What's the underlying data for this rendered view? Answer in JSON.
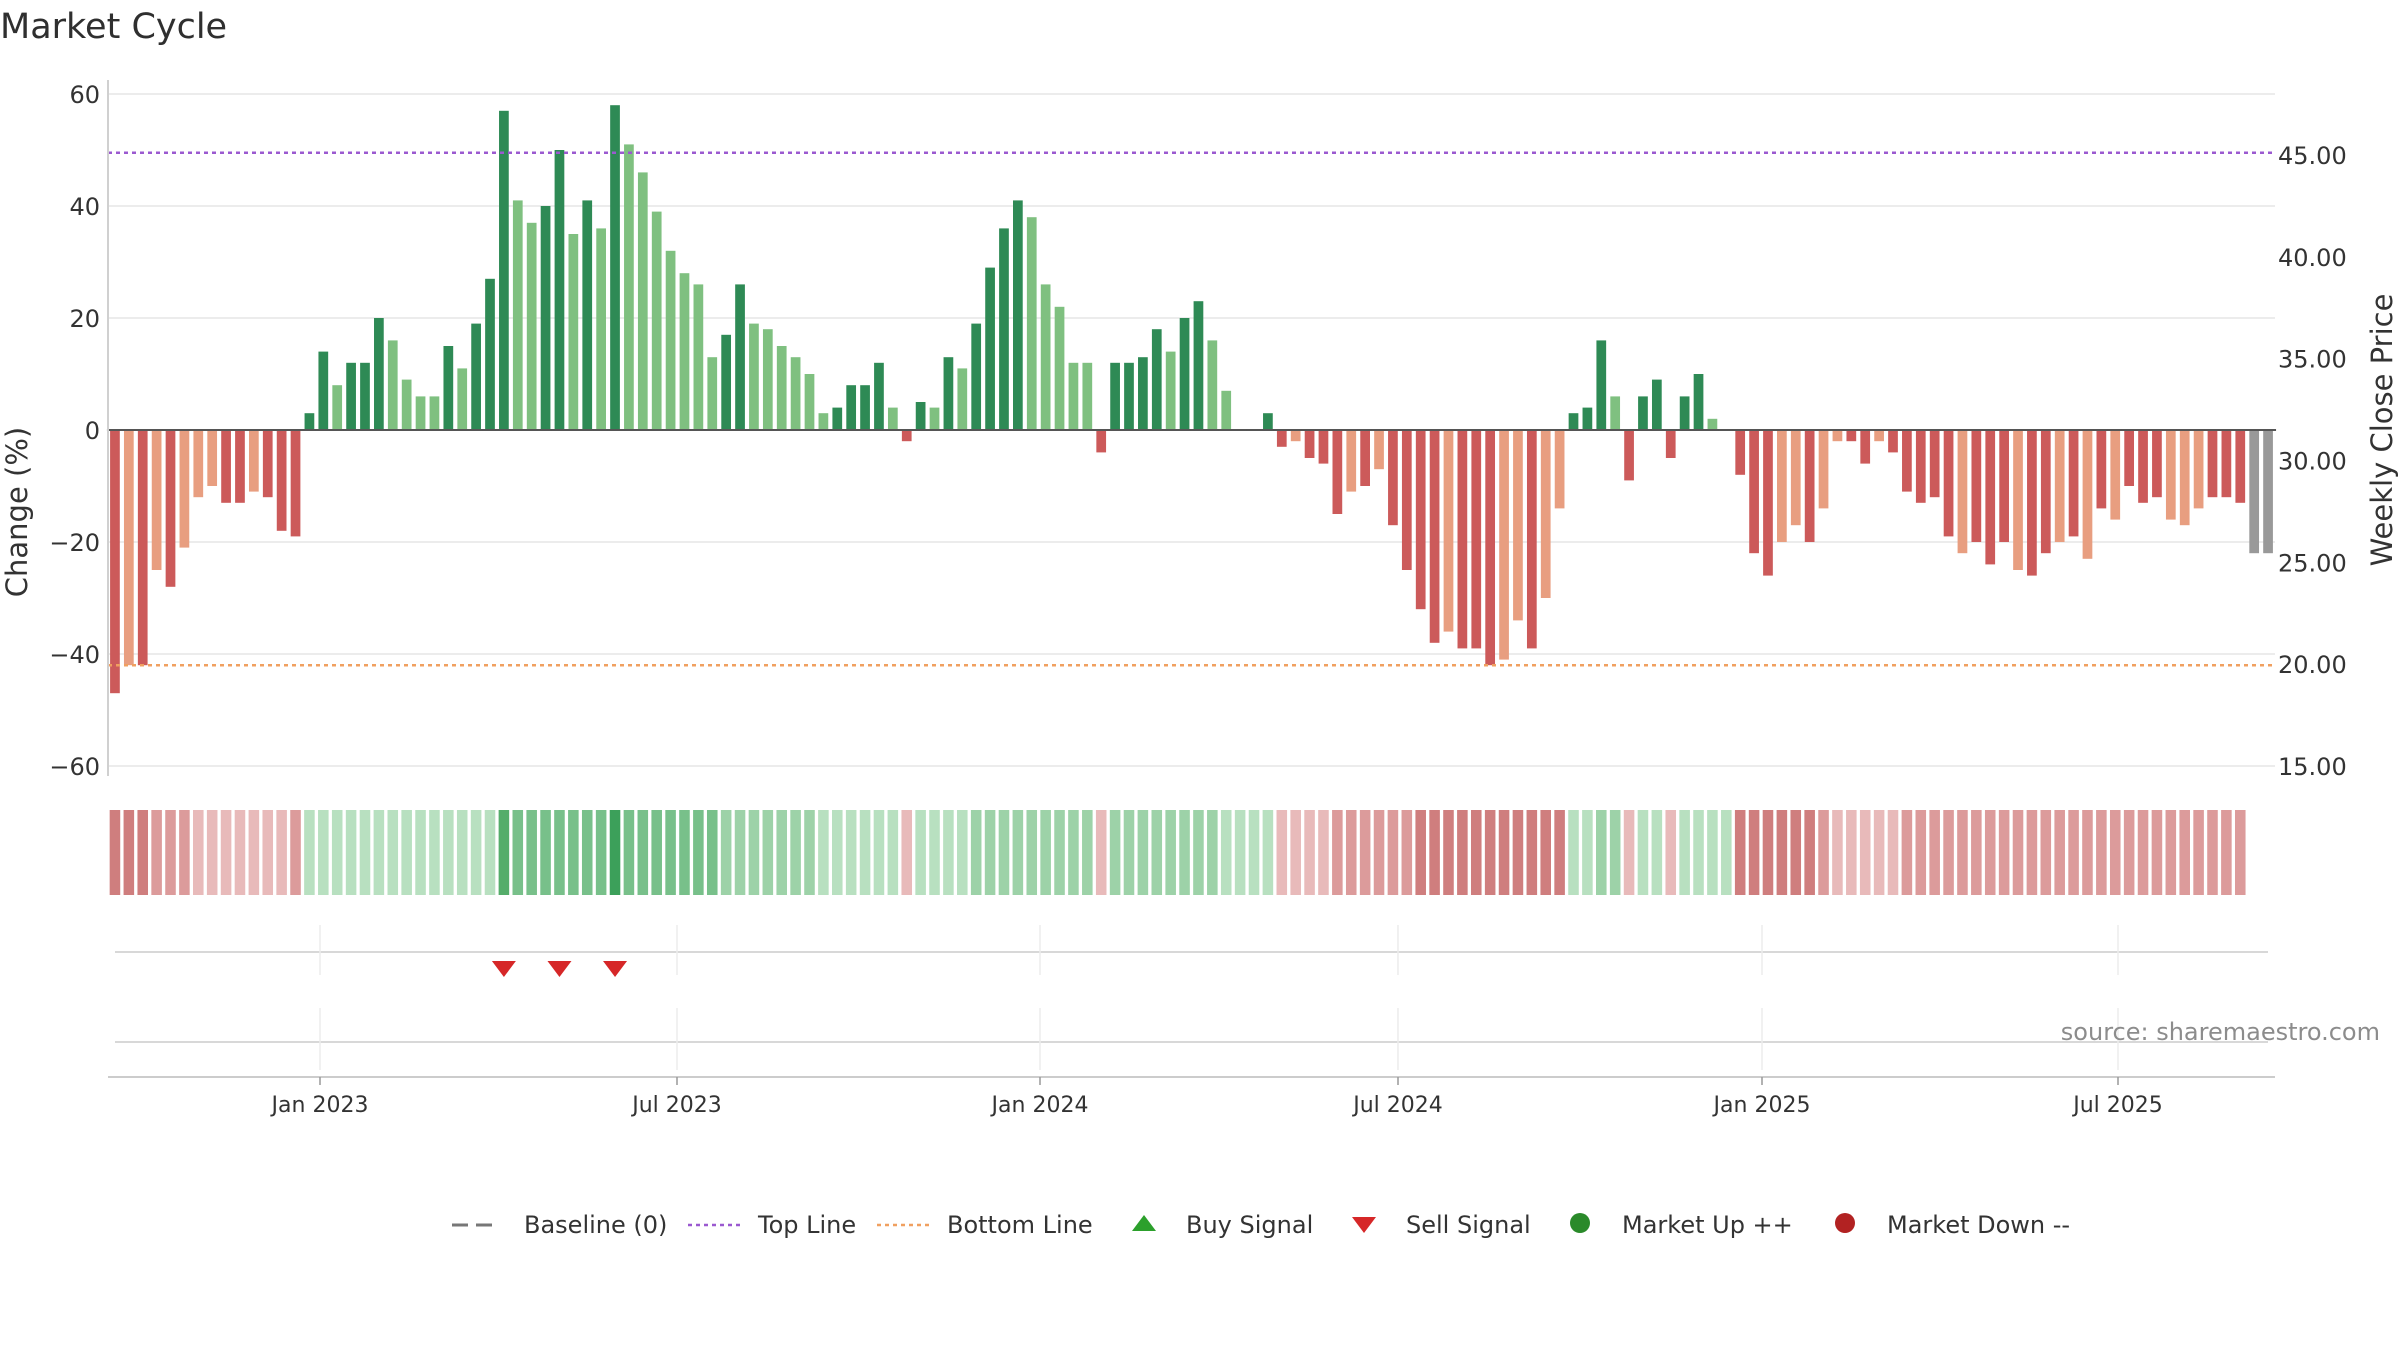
{
  "chart_data": {
    "type": "bar",
    "title": "Market Cycle",
    "ylabel_left": "Change (%)",
    "ylabel_right": "Weekly Close Price",
    "source": "source: sharemaestro.com",
    "left_axis": {
      "ylim": [
        -60,
        60
      ],
      "ticks": [
        "60",
        "40",
        "20",
        "0",
        "−20",
        "−40",
        "−60"
      ]
    },
    "right_axis": {
      "ylim": [
        15,
        48
      ],
      "ticks": [
        "45.00",
        "40.00",
        "35.00",
        "30.00",
        "25.00",
        "20.00",
        "15.00"
      ]
    },
    "x_ticks": [
      "Jan 2023",
      "Jul 2023",
      "Jan 2024",
      "Jul 2024",
      "Jan 2025",
      "Jul 2025"
    ],
    "reference_lines": {
      "baseline": 0,
      "top_line": 49.5,
      "bottom_line": -42
    },
    "colors": {
      "pos_strong": "#2e8a55",
      "pos_weak": "#7fc080",
      "neg_strong": "#cc5a5a",
      "neg_weak": "#e89e80",
      "top_line": "#9b59d0",
      "bottom_line": "#f0a060",
      "sell_signal": "#d62728",
      "buy_signal": "#2ca02c",
      "market_up": "#2a8a2a",
      "market_down": "#b22222"
    },
    "series": [
      {
        "values": [
          -47,
          -42,
          -42,
          -25,
          -28,
          -21,
          -12,
          -10,
          -13,
          -13,
          -11,
          -12,
          -18,
          -19,
          3,
          14,
          8,
          12,
          12,
          20,
          16,
          9,
          6,
          6,
          15,
          11,
          19,
          27,
          57,
          41,
          37,
          40,
          50,
          35,
          41,
          36,
          58,
          51,
          46,
          39,
          32,
          28,
          26,
          13,
          17,
          26,
          19,
          18,
          15,
          13,
          10,
          3,
          4,
          8,
          8,
          12,
          4,
          -2,
          5,
          4,
          13,
          11,
          19,
          29,
          36,
          41,
          38,
          26,
          22,
          12,
          12,
          -4,
          12,
          12,
          13,
          18,
          14,
          20,
          23,
          16,
          7,
          0,
          0,
          3,
          -3,
          -2,
          -5,
          -6,
          -15,
          -11,
          -10,
          -7,
          -17,
          -25,
          -32,
          -38,
          -36,
          -39,
          -39,
          -42,
          -41,
          -34,
          -39,
          -30,
          -14,
          3,
          4,
          16,
          6,
          -9,
          6,
          9,
          -5,
          6,
          10,
          2,
          0,
          -8,
          -22,
          -26,
          -20,
          -17,
          -20,
          -14,
          -2,
          -2,
          -6,
          -2,
          -4,
          -11,
          -13,
          -12,
          -19,
          -22,
          -20,
          -24,
          -20,
          -25,
          -26,
          -22,
          -20,
          -19,
          -23,
          -14,
          -16,
          -10,
          -13,
          -12,
          -16,
          -17,
          -14,
          -12,
          -12,
          -13,
          -22,
          -22
        ],
        "colors": [
          "ns",
          "nw",
          "ns",
          "nw",
          "ns",
          "nw",
          "nw",
          "nw",
          "ns",
          "ns",
          "nw",
          "ns",
          "ns",
          "ns",
          "ps",
          "ps",
          "pw",
          "ps",
          "ps",
          "ps",
          "pw",
          "pw",
          "pw",
          "pw",
          "ps",
          "pw",
          "ps",
          "ps",
          "ps",
          "pw",
          "pw",
          "ps",
          "ps",
          "pw",
          "ps",
          "pw",
          "ps",
          "pw",
          "pw",
          "pw",
          "pw",
          "pw",
          "pw",
          "pw",
          "ps",
          "ps",
          "pw",
          "pw",
          "pw",
          "pw",
          "pw",
          "pw",
          "ps",
          "ps",
          "ps",
          "ps",
          "pw",
          "ns",
          "ps",
          "pw",
          "ps",
          "pw",
          "ps",
          "ps",
          "ps",
          "ps",
          "pw",
          "pw",
          "pw",
          "pw",
          "pw",
          "ns",
          "ps",
          "ps",
          "ps",
          "ps",
          "pw",
          "ps",
          "ps",
          "pw",
          "pw",
          "pw",
          "pw",
          "ps",
          "ns",
          "nw",
          "ns",
          "ns",
          "ns",
          "nw",
          "ns",
          "nw",
          "ns",
          "ns",
          "ns",
          "ns",
          "nw",
          "ns",
          "ns",
          "ns",
          "nw",
          "nw",
          "ns",
          "nw",
          "nw",
          "ps",
          "ps",
          "ps",
          "pw",
          "ns",
          "ps",
          "ps",
          "ns",
          "ps",
          "ps",
          "pw",
          "pw",
          "ns",
          "ns",
          "ns",
          "nw",
          "nw",
          "ns",
          "nw",
          "nw",
          "ns",
          "ns",
          "nw",
          "ns",
          "ns",
          "ns",
          "ns",
          "ns",
          "nw",
          "ns",
          "ns",
          "ns",
          "nw",
          "ns",
          "ns",
          "nw",
          "ns",
          "nw",
          "ns",
          "nw",
          "ns",
          "ns",
          "ns",
          "nw",
          "nw",
          "nw",
          "ns",
          "ns",
          "ns"
        ]
      }
    ],
    "sell_signals": [
      28,
      32,
      36
    ],
    "buy_signals": [],
    "heat_strip": [
      -3,
      -3,
      -3,
      -2,
      -2,
      -2,
      -1,
      -1,
      -1,
      -1,
      -1,
      -1,
      -1,
      -2,
      1,
      1,
      1,
      1,
      1,
      1,
      1,
      1,
      1,
      1,
      1,
      1,
      1,
      1,
      4,
      3,
      3,
      3,
      3,
      3,
      3,
      3,
      5,
      3,
      3,
      3,
      3,
      3,
      3,
      3,
      2,
      2,
      2,
      2,
      2,
      2,
      2,
      1,
      1,
      1,
      1,
      1,
      1,
      -1,
      1,
      1,
      1,
      1,
      2,
      2,
      2,
      2,
      2,
      2,
      2,
      2,
      2,
      -1,
      2,
      2,
      2,
      2,
      2,
      2,
      2,
      2,
      1,
      1,
      1,
      1,
      -1,
      -1,
      -1,
      -1,
      -2,
      -2,
      -2,
      -2,
      -2,
      -2,
      -3,
      -3,
      -3,
      -3,
      -3,
      -3,
      -3,
      -3,
      -3,
      -3,
      -3,
      1,
      1,
      2,
      2,
      -1,
      1,
      1,
      -1,
      1,
      1,
      1,
      1,
      -3,
      -3,
      -3,
      -3,
      -3,
      -3,
      -2,
      -1,
      -1,
      -1,
      -1,
      -1,
      -2,
      -2,
      -2,
      -2,
      -2,
      -2,
      -2,
      -2,
      -2,
      -2,
      -2,
      -2,
      -2,
      -2,
      -2,
      -2,
      -2,
      -2,
      -2,
      -2,
      -2,
      -2,
      -2,
      -2,
      -2
    ],
    "legend": [
      {
        "label": "Baseline (0)",
        "marker": "dash"
      },
      {
        "label": "Top Line",
        "marker": "dot-purple"
      },
      {
        "label": "Bottom Line",
        "marker": "dot-orange"
      },
      {
        "label": "Buy Signal",
        "marker": "triangle-up"
      },
      {
        "label": "Sell Signal",
        "marker": "triangle-down"
      },
      {
        "label": "Market Up ++",
        "marker": "circle-green"
      },
      {
        "label": "Market Down --",
        "marker": "circle-red"
      }
    ]
  }
}
